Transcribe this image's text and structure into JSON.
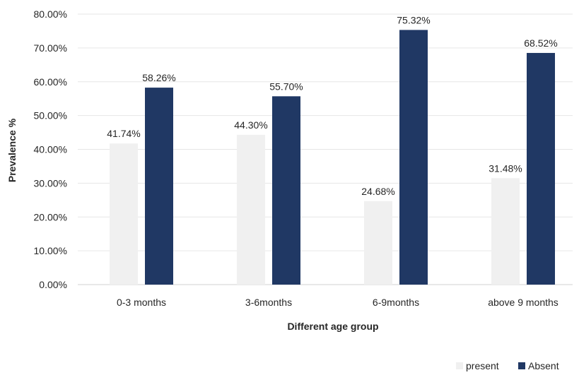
{
  "chart_data": {
    "type": "bar",
    "title": "",
    "xlabel": "Different age group",
    "ylabel": "Prevalence %",
    "ylim": [
      0,
      80
    ],
    "yticks": [
      "0.00%",
      "10.00%",
      "20.00%",
      "30.00%",
      "40.00%",
      "50.00%",
      "60.00%",
      "70.00%",
      "80.00%"
    ],
    "categories": [
      "0-3 months",
      "3-6months",
      "6-9months",
      "above 9 months"
    ],
    "series": [
      {
        "name": "present",
        "color": "#f0f0f0",
        "values": [
          41.74,
          44.3,
          24.68,
          31.48
        ],
        "labels": [
          "41.74%",
          "44.30%",
          "24.68%",
          "31.48%"
        ]
      },
      {
        "name": "Absent",
        "color": "#203864",
        "values": [
          58.26,
          55.7,
          75.32,
          68.52
        ],
        "labels": [
          "58.26%",
          "55.70%",
          "75.32%",
          "68.52%"
        ]
      }
    ],
    "grid": true,
    "legend_position": "bottom-right"
  }
}
